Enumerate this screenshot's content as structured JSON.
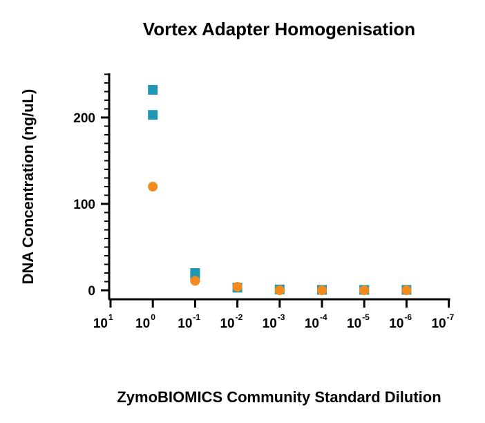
{
  "chart_data": {
    "type": "scatter",
    "title": "Vortex Adapter Homogenisation",
    "xlabel": "ZymoBIOMICS Community Standard Dilution",
    "ylabel": "DNA Concentration (ng/uL)",
    "x_scale": "log10",
    "x_categories": [
      {
        "base": "10",
        "exp": "1"
      },
      {
        "base": "10",
        "exp": "0"
      },
      {
        "base": "10",
        "exp": "-1"
      },
      {
        "base": "10",
        "exp": "-2"
      },
      {
        "base": "10",
        "exp": "-3"
      },
      {
        "base": "10",
        "exp": "-4"
      },
      {
        "base": "10",
        "exp": "-5"
      },
      {
        "base": "10",
        "exp": "-6"
      },
      {
        "base": "10",
        "exp": "-7"
      }
    ],
    "y_ticks": [
      "0",
      "100",
      "200"
    ],
    "ylim": [
      -10,
      250
    ],
    "grid": false,
    "legend": "none",
    "series": [
      {
        "marker": "square",
        "color": "#1f97b2",
        "points": [
          {
            "x": 1,
            "y": 232
          },
          {
            "x": 1,
            "y": 203
          },
          {
            "x": 0.1,
            "y": 20
          },
          {
            "x": 0.1,
            "y": 15
          },
          {
            "x": 0.01,
            "y": 3
          },
          {
            "x": 0.001,
            "y": 1
          },
          {
            "x": 0.0001,
            "y": 0.5
          },
          {
            "x": 1e-05,
            "y": 0.5
          },
          {
            "x": 1e-06,
            "y": 0.5
          }
        ]
      },
      {
        "marker": "circle",
        "color": "#f28a1c",
        "points": [
          {
            "x": 1,
            "y": 120
          },
          {
            "x": 0.1,
            "y": 11
          },
          {
            "x": 0.01,
            "y": 4
          },
          {
            "x": 0.001,
            "y": 0
          },
          {
            "x": 0.0001,
            "y": 0
          },
          {
            "x": 1e-05,
            "y": 0
          },
          {
            "x": 1e-06,
            "y": 0
          }
        ]
      }
    ]
  }
}
